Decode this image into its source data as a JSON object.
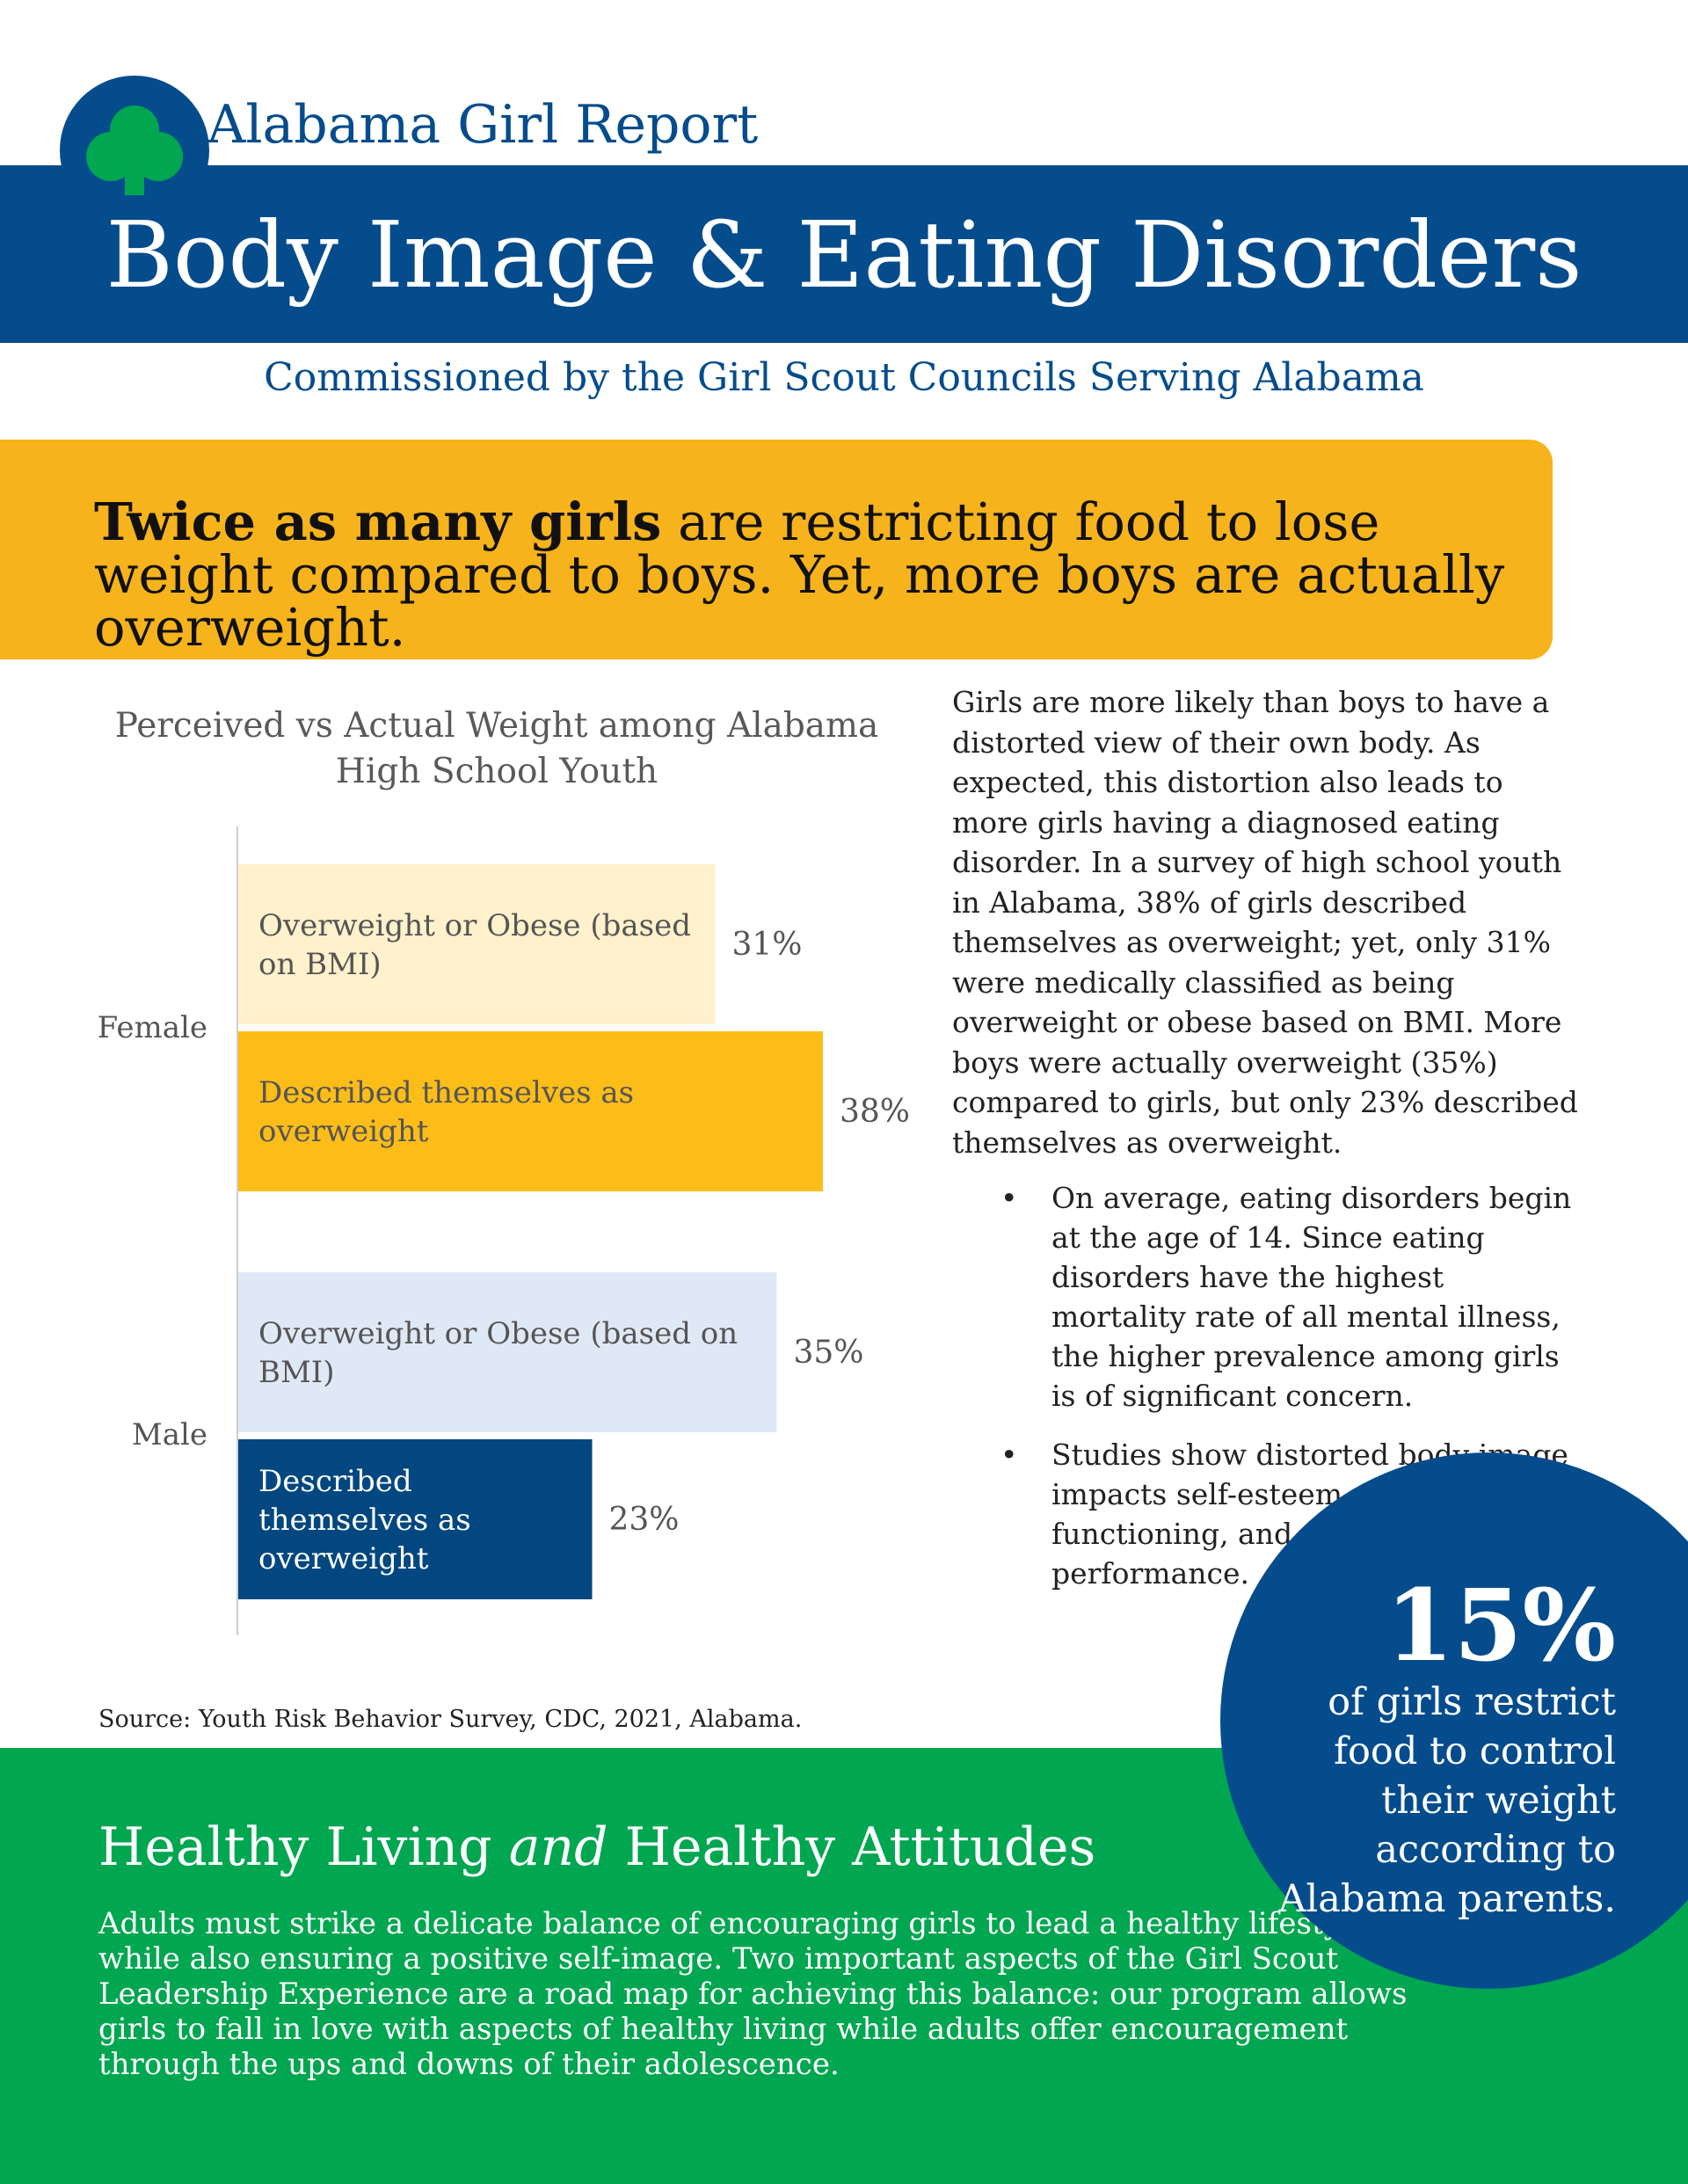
{
  "header": {
    "report_label": "Alabama Girl Report",
    "title": "Body Image & Eating Disorders",
    "subtitle": "Commissioned by the Girl Scout Councils Serving Alabama",
    "logo_icon": "trefoil-icon"
  },
  "headline": {
    "bold_part": "Twice as many girls",
    "rest_part": " are restricting food to lose weight compared to boys. Yet, more boys are actually overweight."
  },
  "chart_data": {
    "type": "bar",
    "orientation": "horizontal",
    "title": "Perceived vs Actual Weight among Alabama High School Youth",
    "groups": [
      "Female",
      "Male"
    ],
    "bars": [
      {
        "group": "Female",
        "label": "Overweight or Obese (based on BMI)",
        "value": 31,
        "value_label": "31%",
        "color": "#fff1cc"
      },
      {
        "group": "Female",
        "label": "Described themselves as overweight",
        "value": 38,
        "value_label": "38%",
        "color": "#fdbd18"
      },
      {
        "group": "Male",
        "label": "Overweight or Obese (based on BMI)",
        "value": 35,
        "value_label": "35%",
        "color": "#dfe9f6"
      },
      {
        "group": "Male",
        "label": "Described themselves as overweight",
        "value": 23,
        "value_label": "23%",
        "color": "#02477f"
      }
    ],
    "unit": "%"
  },
  "source": "Source: Youth Risk Behavior Survey, CDC, 2021, Alabama.",
  "body": {
    "paragraph": "Girls are more likely than boys to have a distorted view of their own body. As expected, this distortion also leads to more girls having a diagnosed eating disorder. In a survey of high school youth in Alabama, 38% of girls described themselves as overweight; yet, only 31% were medically classified as being overweight or obese based on BMI. More boys were actually overweight (35%) compared to girls, but only 23% described themselves as overweight.",
    "bullets": [
      "On average, eating disorders begin at the age of 14. Since eating disorders have the highest mortality rate of all mental illness, the higher prevalence among girls is of significant concern.",
      "Studies show distorted body image impacts self-esteem, social functioning, and academic performance."
    ],
    "bullet_mark": "•"
  },
  "stat": {
    "value": "15%",
    "caption": "of girls restrict food to control their weight according to Alabama parents."
  },
  "footer": {
    "heading_pre": "Healthy Living ",
    "heading_em": "and",
    "heading_post": " Healthy Attitudes",
    "body": "Adults must strike a delicate balance of encouraging girls to lead a healthy lifestyle while also ensuring a positive self-image. Two important aspects of the Girl Scout Leadership Experience are a road map for achieving this balance: our program allows girls to fall in love with aspects of healthy living while adults offer encouragement through the ups and downs of their adolescence."
  },
  "colors": {
    "brand_blue": "#054c8d",
    "banner_yellow": "#f7b31c",
    "footer_green": "#00a650"
  }
}
